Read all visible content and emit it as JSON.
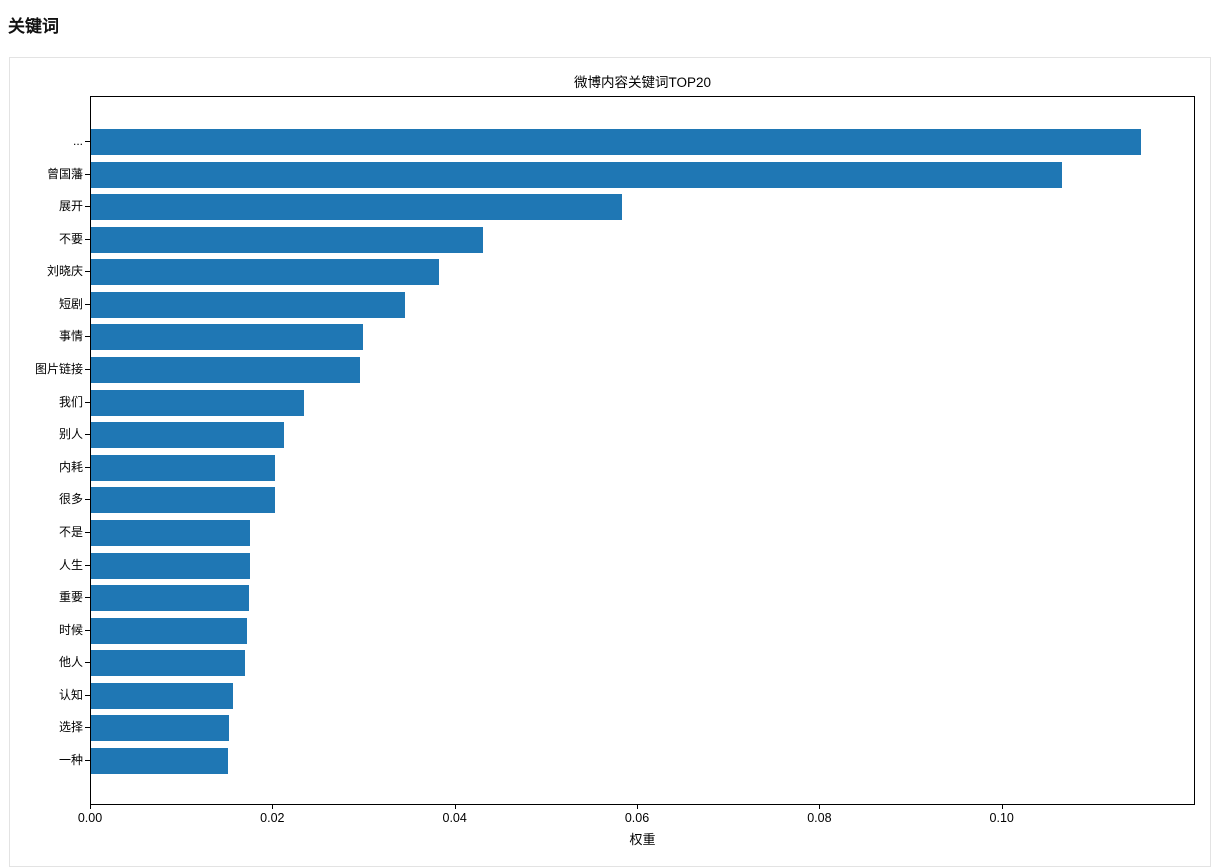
{
  "page": {
    "title": "关键词"
  },
  "chart_data": {
    "type": "bar",
    "orientation": "horizontal",
    "title": "微博内容关键词TOP20",
    "xlabel": "权重",
    "ylabel": "",
    "xlim": [
      0,
      0.1212
    ],
    "x_ticks": [
      0.0,
      0.02,
      0.04,
      0.06,
      0.08,
      0.1
    ],
    "x_tick_labels": [
      "0.00",
      "0.02",
      "0.04",
      "0.06",
      "0.08",
      "0.10"
    ],
    "grid": false,
    "legend": false,
    "bar_color": "#1f77b4",
    "categories": [
      "...",
      "曾国藩",
      "展开",
      "不要",
      "刘晓庆",
      "短剧",
      "事情",
      "图片链接",
      "我们",
      "别人",
      "内耗",
      "很多",
      "不是",
      "人生",
      "重要",
      "时候",
      "他人",
      "认知",
      "选择",
      "一种"
    ],
    "values": [
      0.1154,
      0.1067,
      0.0583,
      0.0431,
      0.0382,
      0.0345,
      0.0299,
      0.0296,
      0.0234,
      0.0212,
      0.0202,
      0.0202,
      0.0175,
      0.0175,
      0.0174,
      0.0171,
      0.0169,
      0.0156,
      0.0152,
      0.015
    ]
  }
}
